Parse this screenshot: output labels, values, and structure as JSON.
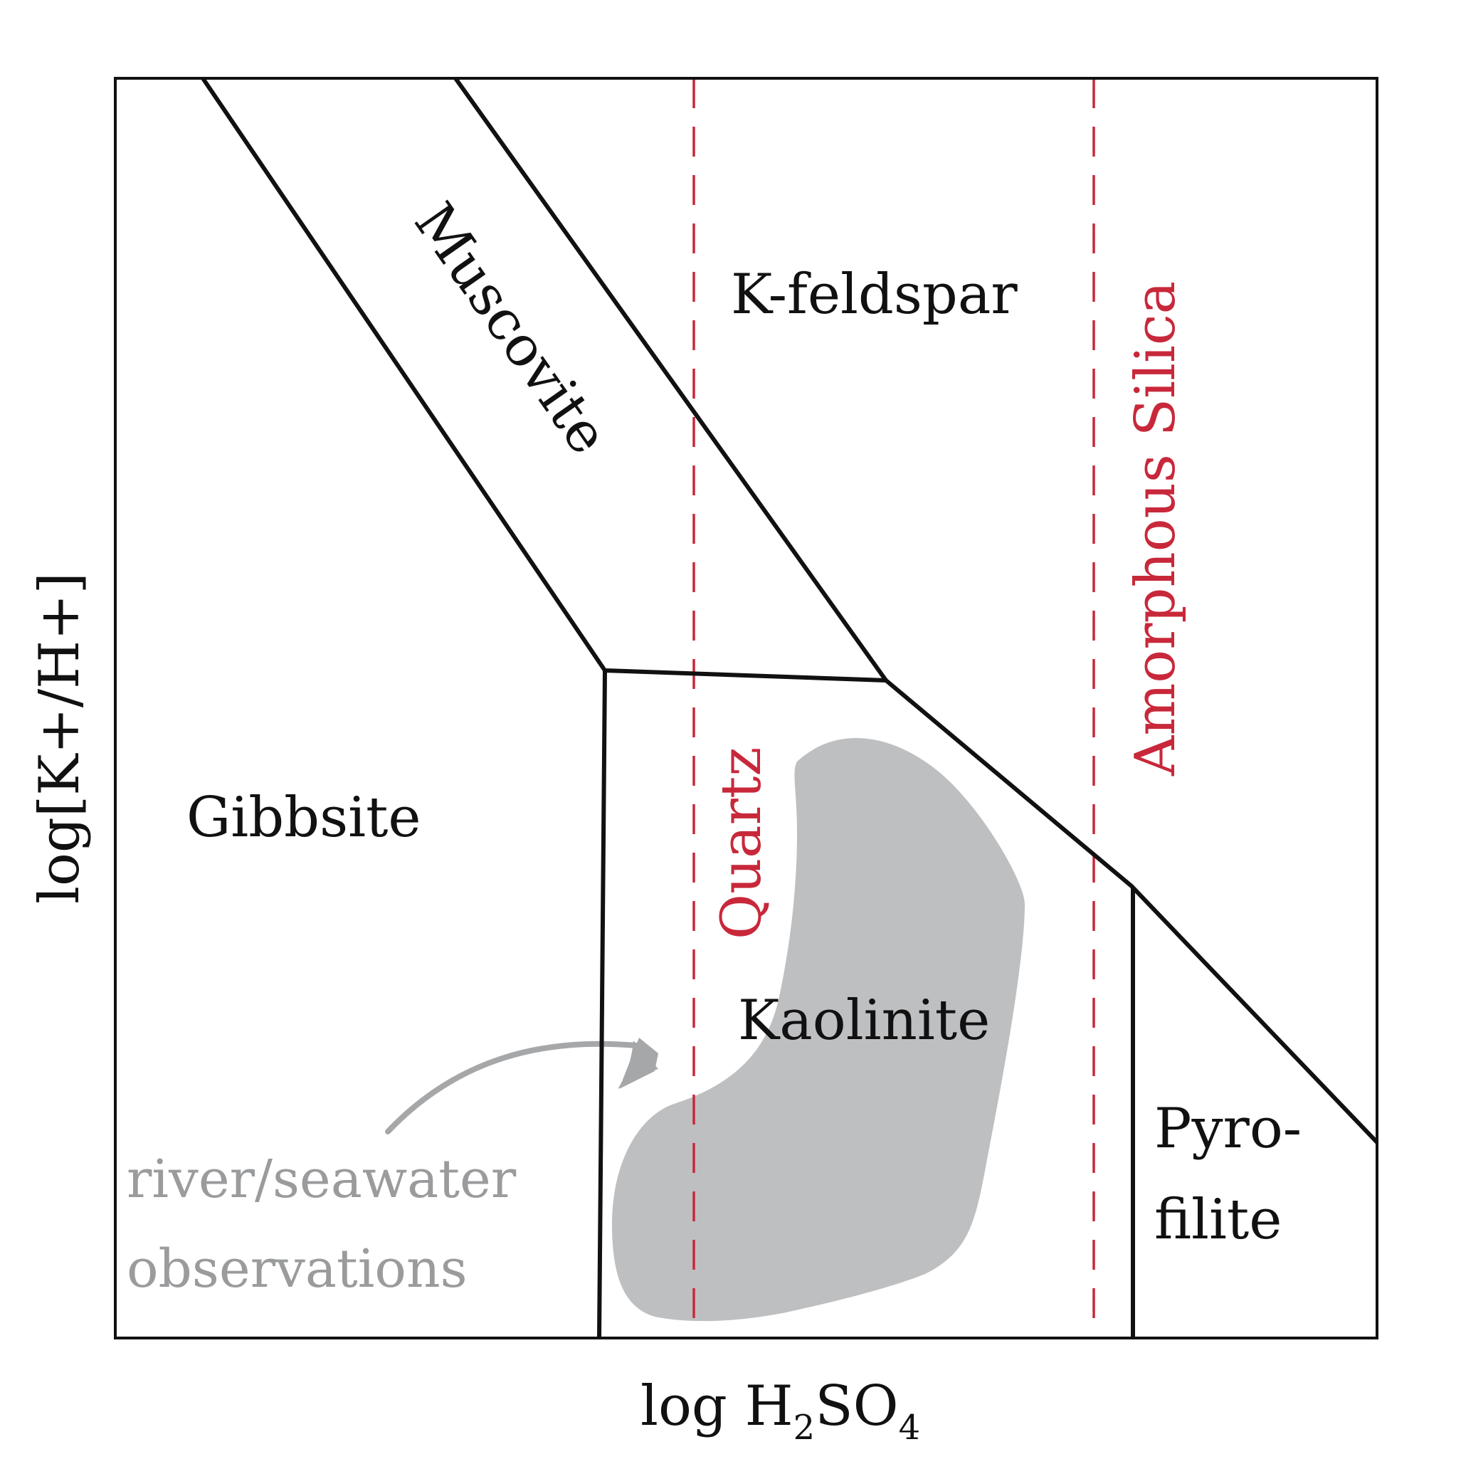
{
  "colors": {
    "boundary": "#111111",
    "silica_line": "#c8283a",
    "observation_fill": "#bebfc1",
    "observation_text": "#9a9b9d"
  },
  "axes": {
    "x_label_prefix": "log H",
    "x_label_sub1": "2",
    "x_label_mid": "SO",
    "x_label_sub2": "4",
    "y_label": "log[K+/H+]"
  },
  "regions": {
    "gibbsite": "Gibbsite",
    "muscovite": "Muscovite",
    "k_feldspar": "K-feldspar",
    "kaolinite": "Kaolinite",
    "pyrofilite_line1": "Pyro-",
    "pyrofilite_line2": "filite"
  },
  "silica_lines": {
    "quartz": "Quartz",
    "amorphous_silica": "Amorphous Silica"
  },
  "observations": {
    "line1": "river/seawater",
    "line2": "observations"
  }
}
